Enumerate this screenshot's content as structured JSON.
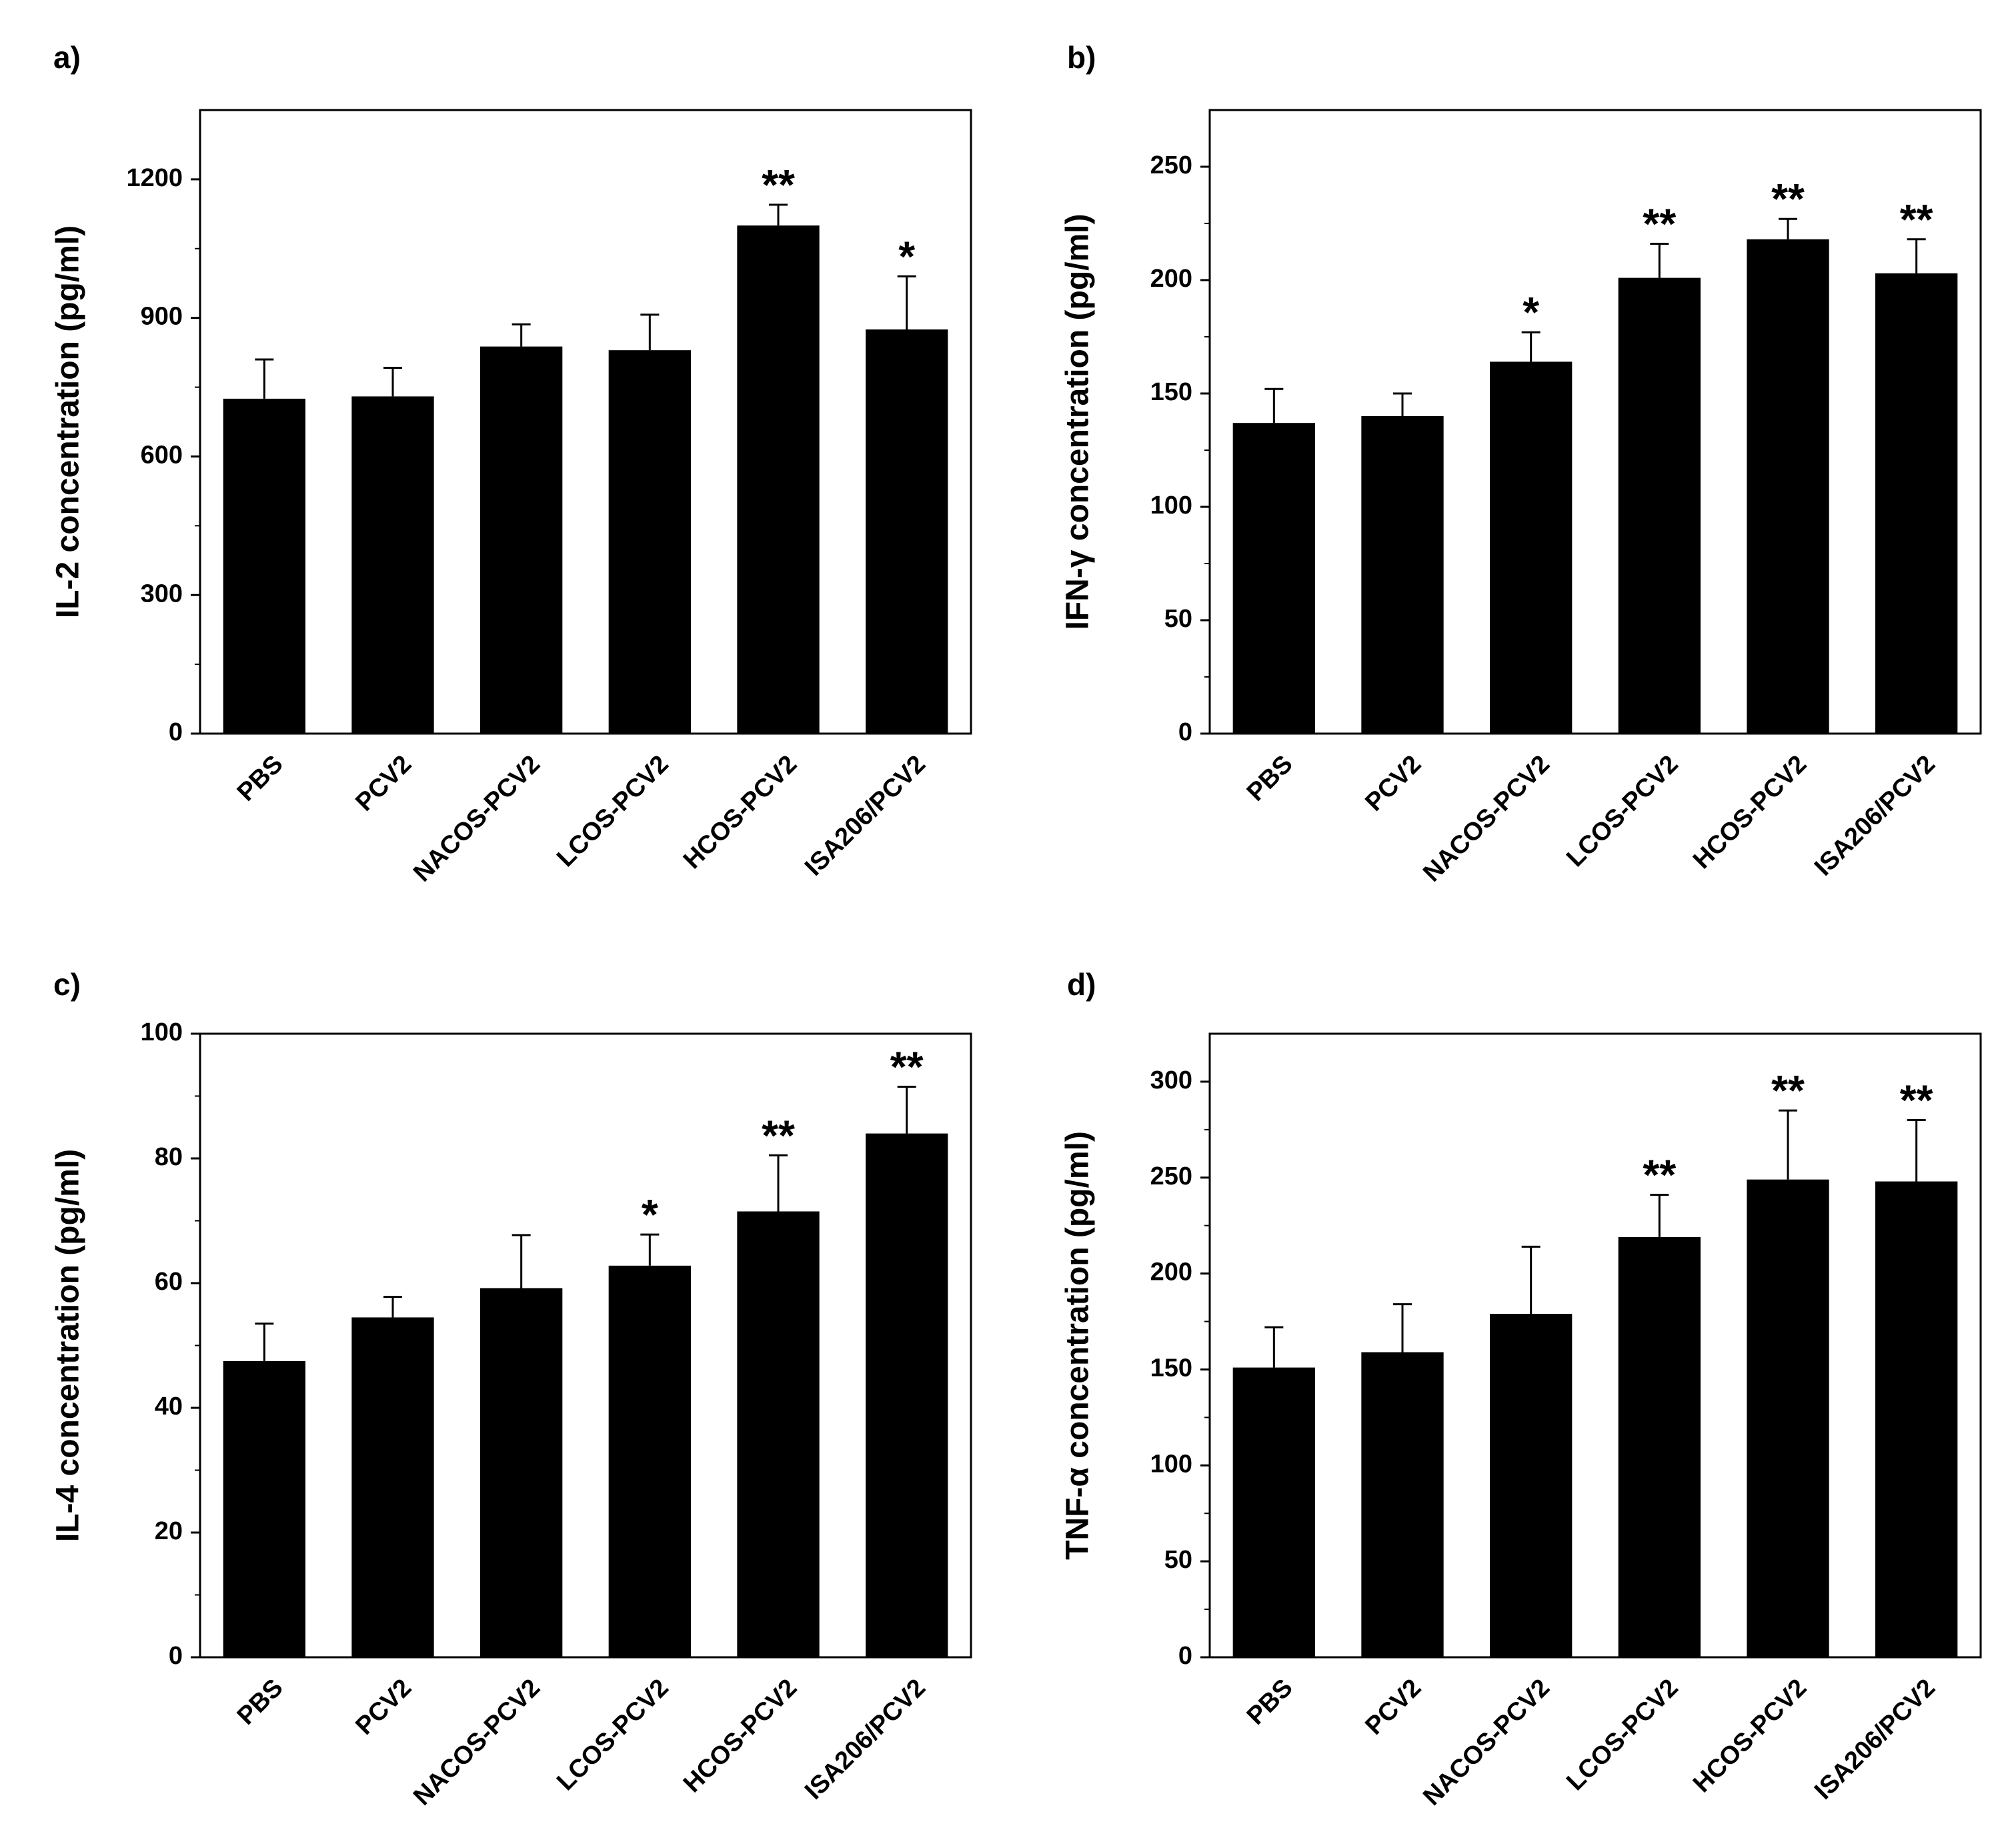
{
  "chart_data": [
    {
      "panel": "a)",
      "type": "bar",
      "categories": [
        "PBS",
        "PCV2",
        "NACOS-PCV2",
        "LCOS-PCV2",
        "HCOS-PCV2",
        "ISA206/PCV2"
      ],
      "values": [
        725,
        730,
        838,
        830,
        1100,
        875
      ],
      "errors": [
        85,
        62,
        48,
        77,
        45,
        115
      ],
      "significance": [
        "",
        "",
        "",
        "",
        "**",
        "*"
      ],
      "title": "",
      "xlabel": "",
      "ylabel": "IL-2 concentration (pg/ml)",
      "ylim": [
        0,
        1350
      ],
      "yticks": [
        0,
        300,
        600,
        900,
        1200
      ],
      "minor_step": 150,
      "bar_color": "#000000",
      "grid": false
    },
    {
      "panel": "b)",
      "type": "bar",
      "categories": [
        "PBS",
        "PCV2",
        "NACOS-PCV2",
        "LCOS-PCV2",
        "HCOS-PCV2",
        "ISA206/PCV2"
      ],
      "values": [
        137,
        140,
        164,
        201,
        218,
        203
      ],
      "errors": [
        15,
        10,
        13,
        15,
        9,
        15
      ],
      "significance": [
        "",
        "",
        "*",
        "**",
        "**",
        "**"
      ],
      "title": "",
      "xlabel": "",
      "ylabel": "IFN-γ concentration (pg/ml)",
      "ylim": [
        0,
        275
      ],
      "yticks": [
        0,
        50,
        100,
        150,
        200,
        250
      ],
      "minor_step": 25,
      "bar_color": "#000000",
      "grid": false
    },
    {
      "panel": "c)",
      "type": "bar",
      "categories": [
        "PBS",
        "PCV2",
        "NACOS-PCV2",
        "LCOS-PCV2",
        "HCOS-PCV2",
        "ISA206/PCV2"
      ],
      "values": [
        47.5,
        54.5,
        59.2,
        62.8,
        71.5,
        84
      ],
      "errors": [
        6,
        3.3,
        8.5,
        5,
        9,
        7.5
      ],
      "significance": [
        "",
        "",
        "",
        "*",
        "**",
        "**"
      ],
      "title": "",
      "xlabel": "",
      "ylabel": "IL-4 concentration (pg/ml)",
      "ylim": [
        0,
        100
      ],
      "yticks": [
        0,
        20,
        40,
        60,
        80,
        100
      ],
      "minor_step": 10,
      "bar_color": "#000000",
      "grid": false
    },
    {
      "panel": "d)",
      "type": "bar",
      "categories": [
        "PBS",
        "PCV2",
        "NACOS-PCV2",
        "LCOS-PCV2",
        "HCOS-PCV2",
        "ISA206/PCV2"
      ],
      "values": [
        151,
        159,
        179,
        219,
        249,
        248
      ],
      "errors": [
        21,
        25,
        35,
        22,
        36,
        32
      ],
      "significance": [
        "",
        "",
        "",
        "**",
        "**",
        "**"
      ],
      "title": "",
      "xlabel": "",
      "ylabel": "TNF-α concentration (pg/ml)",
      "ylim": [
        0,
        325
      ],
      "yticks": [
        0,
        50,
        100,
        150,
        200,
        250,
        300
      ],
      "minor_step": 25,
      "bar_color": "#000000",
      "grid": false
    }
  ]
}
